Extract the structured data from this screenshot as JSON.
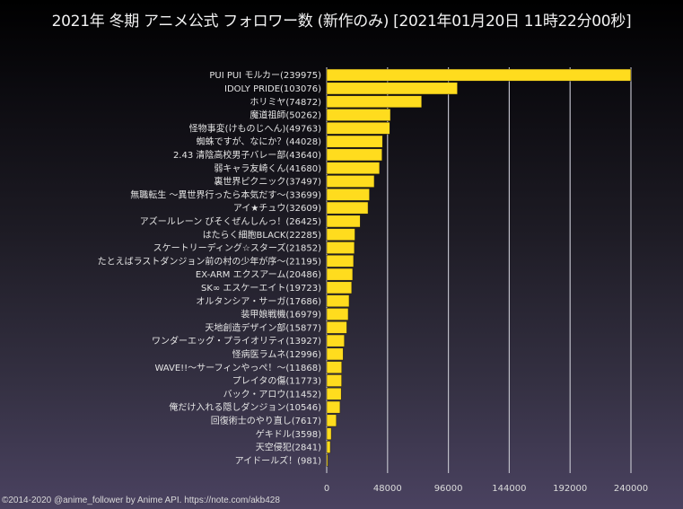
{
  "title": "2021年 冬期 アニメ公式 フォロワー数 (新作のみ) [2021年01月20日 11時22分00秒]",
  "footer": "©2014-2020 @anime_follower by Anime API. https://note.com/akb428",
  "colors": {
    "bar": "#ffdc1e",
    "grid": "#bdbdc7",
    "text": "#e4e4e4"
  },
  "chart_data": {
    "type": "bar",
    "orientation": "horizontal",
    "title": "2021年 冬期 アニメ公式 フォロワー数 (新作のみ) [2021年01月20日 11時22分00秒]",
    "xlabel": "",
    "ylabel": "",
    "xlim": [
      0,
      240000
    ],
    "xticks": [
      0,
      48000,
      96000,
      144000,
      192000,
      240000
    ],
    "xtick_labels": [
      "0",
      "48000",
      "96000",
      "144000",
      "192000",
      "240000"
    ],
    "grid": "vertical",
    "legend": "none",
    "categories": [
      "PUI PUI モルカー(239975)",
      "IDOLY PRIDE(103076)",
      "ホリミヤ(74872)",
      "魔道祖師(50262)",
      "怪物事変(けものじへん)(49763)",
      "蜘蛛ですが、なにか？(44028)",
      "2.43 清陰高校男子バレー部(43640)",
      "弱キャラ友崎くん(41680)",
      "裏世界ピクニック(37497)",
      "無職転生 ～異世界行ったら本気だす～(33699)",
      "アイ★チュウ(32609)",
      "アズールレーン びそくぜんしんっ！(26425)",
      "はたらく細胞BLACK(22285)",
      "スケートリーディング☆スターズ(21852)",
      "たとえばラストダンジョン前の村の少年が序～(21195)",
      "EX-ARM エクスアーム(20486)",
      "SK∞ エスケーエイト(19723)",
      "オルタンシア・サーガ(17686)",
      "装甲娘戦機(16979)",
      "天地創造デザイン部(15877)",
      "ワンダーエッグ・プライオリティ(13927)",
      "怪病医ラムネ(12996)",
      "WAVE!!～サーフィンやっぺ！～(11868)",
      "プレイタの傷(11773)",
      "バック・アロウ(11452)",
      "俺だけ入れる隠しダンジョン(10546)",
      "回復術士のやり直し(7617)",
      "ゲキドル(3598)",
      "天空侵犯(2841)",
      "アイドールズ！(981)"
    ],
    "values": [
      239975,
      103076,
      74872,
      50262,
      49763,
      44028,
      43640,
      41680,
      37497,
      33699,
      32609,
      26425,
      22285,
      21852,
      21195,
      20486,
      19723,
      17686,
      16979,
      15877,
      13927,
      12996,
      11868,
      11773,
      11452,
      10546,
      7617,
      3598,
      2841,
      981
    ]
  }
}
